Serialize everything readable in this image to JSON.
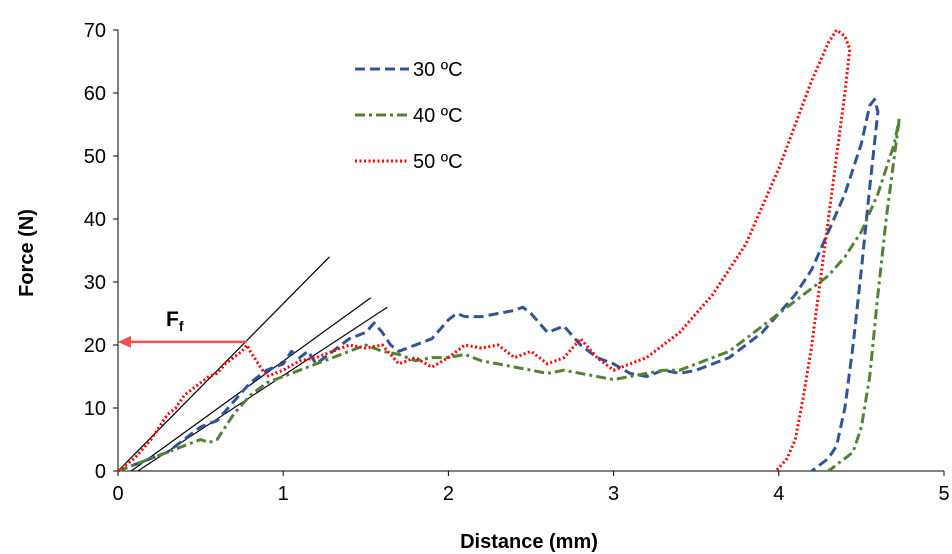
{
  "chart_data": {
    "type": "line",
    "xlabel": "Distance (mm)",
    "ylabel": "Force (N)",
    "xlim": [
      0,
      5
    ],
    "ylim": [
      0,
      70
    ],
    "x_ticks": [
      "0",
      "1",
      "2",
      "3",
      "4",
      "5"
    ],
    "y_ticks": [
      "0",
      "10",
      "20",
      "30",
      "40",
      "50",
      "60",
      "70"
    ],
    "grid": false,
    "legend_position": "top-center",
    "series": [
      {
        "name": "30 ºC",
        "color": "#2F5597",
        "dash": "dashed",
        "x": [
          0,
          0.1,
          0.2,
          0.3,
          0.4,
          0.5,
          0.6,
          0.7,
          0.8,
          0.9,
          1.0,
          1.05,
          1.1,
          1.15,
          1.2,
          1.3,
          1.4,
          1.5,
          1.55,
          1.6,
          1.65,
          1.7,
          1.8,
          1.9,
          2.0,
          2.05,
          2.1,
          2.2,
          2.3,
          2.4,
          2.45,
          2.5,
          2.6,
          2.7,
          2.8,
          2.9,
          3.0,
          3.1,
          3.2,
          3.3,
          3.4,
          3.5,
          3.6,
          3.7,
          3.8,
          3.9,
          4.0,
          4.1,
          4.2,
          4.3,
          4.4,
          4.5,
          4.55,
          4.58,
          4.6,
          4.55,
          4.5,
          4.45,
          4.4,
          4.35,
          4.3,
          4.25,
          4.2
        ],
        "y": [
          0,
          1,
          2,
          3,
          5,
          7,
          8,
          11,
          14,
          16,
          17,
          19,
          18,
          19,
          17,
          19,
          21,
          22,
          23.5,
          22,
          20,
          19,
          20,
          21,
          24,
          25,
          24.5,
          24.5,
          25,
          25.5,
          26,
          25,
          22,
          23,
          20,
          18,
          17,
          15.5,
          15,
          16,
          15.5,
          16,
          17,
          18,
          20,
          22,
          25,
          28,
          32,
          38,
          44,
          52,
          58,
          59,
          57,
          45,
          32,
          20,
          10,
          4,
          2,
          1,
          0
        ]
      },
      {
        "name": "40 ºC",
        "color": "#548235",
        "dash": "dashdot",
        "x": [
          0,
          0.1,
          0.2,
          0.3,
          0.4,
          0.5,
          0.55,
          0.6,
          0.7,
          0.8,
          0.9,
          1.0,
          1.1,
          1.2,
          1.3,
          1.4,
          1.5,
          1.6,
          1.7,
          1.8,
          1.9,
          2.0,
          2.1,
          2.2,
          2.3,
          2.4,
          2.5,
          2.6,
          2.7,
          2.8,
          2.9,
          3.0,
          3.1,
          3.2,
          3.3,
          3.4,
          3.5,
          3.6,
          3.7,
          3.8,
          3.9,
          4.0,
          4.1,
          4.2,
          4.3,
          4.4,
          4.5,
          4.6,
          4.7,
          4.73,
          4.7,
          4.65,
          4.6,
          4.55,
          4.5,
          4.45,
          4.4,
          4.35,
          4.3
        ],
        "y": [
          0,
          1,
          2,
          3,
          4,
          5,
          4.5,
          5,
          9,
          12,
          14,
          15,
          16,
          17,
          18,
          19,
          20,
          19,
          18.5,
          17.5,
          18,
          18,
          18.5,
          17.5,
          17,
          16.5,
          16,
          15.5,
          16,
          15.5,
          15,
          14.5,
          15,
          15.5,
          16,
          16,
          17,
          18,
          19,
          21,
          23,
          25,
          27,
          29,
          31,
          34,
          38,
          44,
          52,
          56,
          50,
          40,
          28,
          15,
          7,
          3,
          2,
          1,
          0
        ]
      },
      {
        "name": "50 ºC",
        "color": "#FF0000",
        "dash": "dotted",
        "x": [
          0,
          0.1,
          0.2,
          0.3,
          0.35,
          0.4,
          0.45,
          0.5,
          0.55,
          0.6,
          0.65,
          0.7,
          0.75,
          0.78,
          0.8,
          0.85,
          0.9,
          1.0,
          1.1,
          1.2,
          1.3,
          1.4,
          1.5,
          1.6,
          1.7,
          1.8,
          1.9,
          2.0,
          2.1,
          2.2,
          2.3,
          2.4,
          2.5,
          2.6,
          2.7,
          2.8,
          2.9,
          3.0,
          3.1,
          3.2,
          3.3,
          3.4,
          3.5,
          3.6,
          3.7,
          3.8,
          3.9,
          4.0,
          4.1,
          4.2,
          4.3,
          4.35,
          4.4,
          4.43,
          4.4,
          4.35,
          4.3,
          4.25,
          4.2,
          4.15,
          4.1,
          4.05,
          4.0,
          3.98
        ],
        "y": [
          0,
          2,
          5,
          9,
          10,
          12,
          13,
          14,
          15,
          15.5,
          17,
          18,
          19,
          20,
          19,
          17,
          15,
          16,
          17.5,
          18,
          19,
          20,
          19.5,
          20,
          17,
          18,
          16.5,
          18,
          20,
          19.5,
          20,
          18,
          19,
          17,
          18,
          21,
          18,
          16,
          17,
          18,
          20,
          22,
          25,
          28,
          32,
          36,
          42,
          48,
          55,
          62,
          68,
          70,
          69,
          67,
          60,
          50,
          40,
          30,
          20,
          12,
          5,
          2,
          0.5,
          0
        ]
      }
    ],
    "tangent_lines": [
      {
        "x": [
          0,
          1.28
        ],
        "y": [
          0,
          34
        ]
      },
      {
        "x": [
          0.08,
          1.53
        ],
        "y": [
          0,
          27.5
        ]
      },
      {
        "x": [
          0.12,
          1.63
        ],
        "y": [
          0,
          26
        ]
      }
    ],
    "annotations": [
      {
        "text": "F",
        "subscript": "f",
        "arrow_from": [
          0.78,
          20.5
        ],
        "arrow_to": [
          0,
          20.5
        ],
        "color": "#F0504F"
      }
    ]
  }
}
